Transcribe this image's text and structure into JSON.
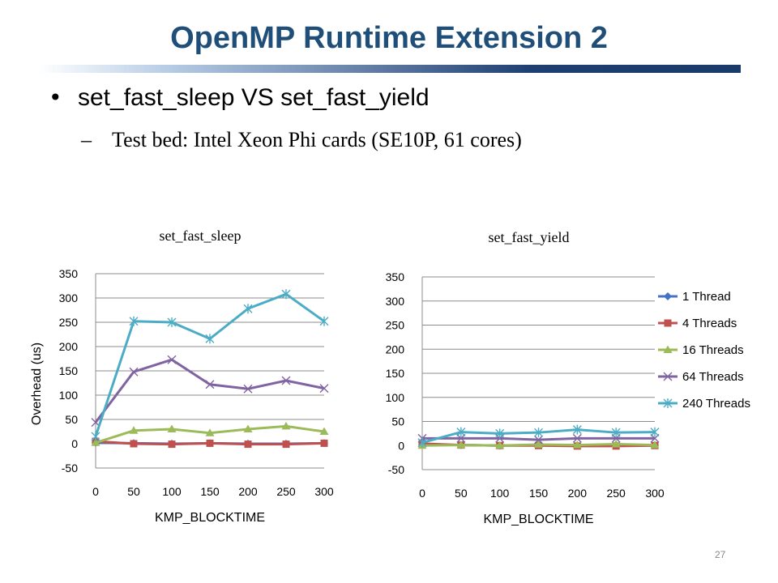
{
  "slide": {
    "title": "OpenMP Runtime Extension 2",
    "bullet": "set_fast_sleep VS set_fast_yield",
    "sub_bullet": "Test bed: Intel Xeon Phi cards (SE10P, 61 cores)",
    "page_number": "27",
    "bullet_glyph": "•",
    "dash_glyph": "–"
  },
  "colors": {
    "title": "#1f4e79",
    "grid": "#8c8c8c",
    "series": [
      "#4472c4",
      "#c0504d",
      "#9bbb59",
      "#8064a2",
      "#4bacc6"
    ]
  },
  "chart_data": [
    {
      "type": "line",
      "title": "set_fast_sleep",
      "xlabel": "KMP_BLOCKTIME",
      "ylabel": "Overhead (us)",
      "x": [
        0,
        50,
        100,
        150,
        200,
        250,
        300
      ],
      "ylim": [
        -50,
        350
      ],
      "yticks": [
        -50,
        0,
        50,
        100,
        150,
        200,
        250,
        300,
        350
      ],
      "xticks": [
        0,
        50,
        100,
        150,
        200,
        250,
        300
      ],
      "grid": "horizontal",
      "legend": "none",
      "series": [
        {
          "name": "1 Thread",
          "values": [
            2,
            1,
            0,
            1,
            0,
            0,
            1
          ],
          "marker": "diamond"
        },
        {
          "name": "4 Threads",
          "values": [
            5,
            0,
            -1,
            1,
            -1,
            -1,
            1
          ],
          "marker": "square"
        },
        {
          "name": "16 Threads",
          "values": [
            2,
            27,
            30,
            22,
            30,
            36,
            25
          ],
          "marker": "triangle"
        },
        {
          "name": "64 Threads",
          "values": [
            44,
            148,
            173,
            122,
            113,
            130,
            114
          ],
          "marker": "x"
        },
        {
          "name": "240 Threads",
          "values": [
            15,
            252,
            250,
            216,
            278,
            308,
            252
          ],
          "marker": "star"
        }
      ]
    },
    {
      "type": "line",
      "title": "set_fast_yield",
      "xlabel": "KMP_BLOCKTIME",
      "ylabel": "",
      "x": [
        0,
        50,
        100,
        150,
        200,
        250,
        300
      ],
      "ylim": [
        -50,
        350
      ],
      "yticks": [
        -50,
        0,
        50,
        100,
        150,
        200,
        250,
        300,
        350
      ],
      "xticks": [
        0,
        50,
        100,
        150,
        200,
        250,
        300
      ],
      "grid": "horizontal",
      "legend": "right",
      "series": [
        {
          "name": "1 Thread",
          "values": [
            2,
            1,
            0,
            1,
            0,
            0,
            1
          ],
          "marker": "diamond"
        },
        {
          "name": "4 Threads",
          "values": [
            4,
            1,
            0,
            0,
            -1,
            -1,
            0
          ],
          "marker": "square"
        },
        {
          "name": "16 Threads",
          "values": [
            0,
            1,
            0,
            2,
            1,
            3,
            1
          ],
          "marker": "triangle"
        },
        {
          "name": "64 Threads",
          "values": [
            15,
            15,
            15,
            12,
            15,
            15,
            15
          ],
          "marker": "x"
        },
        {
          "name": "240 Threads",
          "values": [
            6,
            28,
            25,
            27,
            33,
            27,
            28
          ],
          "marker": "star"
        }
      ]
    }
  ]
}
